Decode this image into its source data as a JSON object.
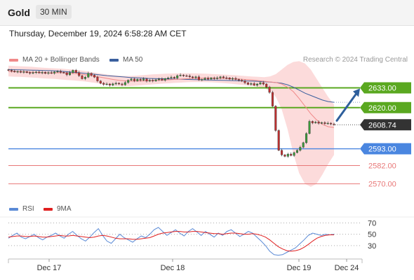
{
  "header": {
    "title": "Gold",
    "timeframe": "30 MIN"
  },
  "datetime": "Thursday, December 19, 2024 6:58:28 AM CET",
  "legend": {
    "bollinger": {
      "label": "MA 20 + Bollinger Bands",
      "color": "#f08a8a"
    },
    "ma50": {
      "label": "MA 50",
      "color": "#3a5f9e"
    }
  },
  "rsi_legend": {
    "rsi": {
      "label": "RSI",
      "color": "#5a8ad6"
    },
    "ma9": {
      "label": "9MA",
      "color": "#e02020"
    }
  },
  "credit": "Research © 2024 Trading Central",
  "colors": {
    "green_level": "#5aa820",
    "blue_level": "#4a86e0",
    "red_level": "#e87878",
    "price_tag": "#333333",
    "arrow": "#2e5f9c",
    "candle_up": "#3a9a3a",
    "candle_down": "#c03030",
    "band_fill": "#fbd5d5"
  },
  "chart_data": [
    {
      "type": "candlestick",
      "series": [
        {
          "name": "MA 20 + Bollinger Bands"
        },
        {
          "name": "MA 50"
        }
      ],
      "ylim": [
        2562,
        2647
      ],
      "levels": [
        {
          "value": 2633.0,
          "label": "2633.00",
          "kind": "resistance"
        },
        {
          "value": 2620.0,
          "label": "2620.00",
          "kind": "resistance"
        },
        {
          "value": 2608.74,
          "label": "2608.74",
          "kind": "last"
        },
        {
          "value": 2593.0,
          "label": "2593.00",
          "kind": "pivot"
        },
        {
          "value": 2582.0,
          "label": "2582.00",
          "kind": "support"
        },
        {
          "value": 2570.0,
          "label": "2570.00",
          "kind": "support"
        }
      ],
      "x_ticks": [
        "Dec 17",
        "Dec 18",
        "Dec 19",
        "Dec 24"
      ],
      "close": [
        2644.5,
        2644,
        2643.5,
        2643.8,
        2643.2,
        2643.6,
        2643,
        2642.5,
        2643,
        2643.4,
        2642.8,
        2643.2,
        2642.5,
        2643,
        2642.6,
        2643.4,
        2643.8,
        2643.2,
        2642.9,
        2641.5,
        2643,
        2644.5,
        2643,
        2641,
        2639,
        2640,
        2642.5,
        2641.3,
        2640,
        2637.5,
        2636,
        2635.2,
        2635.5,
        2634.7,
        2635.6,
        2636,
        2635.5,
        2635,
        2636.5,
        2638,
        2638.8,
        2637.6,
        2638.6,
        2638,
        2638.9,
        2637.4,
        2638,
        2637.5,
        2638.3,
        2638.8,
        2638,
        2639,
        2639.5,
        2640,
        2639.4,
        2641,
        2641.4,
        2641,
        2640.8,
        2640.2,
        2639.6,
        2640.2,
        2638.2,
        2638.5,
        2639.3,
        2638.7,
        2639.5,
        2639,
        2639.5,
        2640.2,
        2639.6,
        2639.5,
        2638.7,
        2639.2,
        2638.5,
        2638,
        2637.4,
        2636.3,
        2635.3,
        2635.8,
        2634.7,
        2635.5,
        2636.4,
        2635.5,
        2633.5,
        2630,
        2621,
        2605,
        2592,
        2589,
        2588,
        2589.5,
        2588.6,
        2590.5,
        2592,
        2594,
        2597,
        2603,
        2611,
        2610,
        2610.5,
        2609.7,
        2610.2,
        2609.5,
        2609.8,
        2609.3,
        2608.74
      ],
      "ma20": [
        2643.8,
        2643.6,
        2643.5,
        2643.4,
        2643.2,
        2643.0,
        2642.8,
        2642.7,
        2642.8,
        2642.9,
        2642.7,
        2642.5,
        2642.2,
        2641.7,
        2641.1,
        2640.5,
        2639.9,
        2639.2,
        2638.5,
        2637.9,
        2637.6,
        2637.4,
        2637.4,
        2637.5,
        2637.6,
        2637.8,
        2638.0,
        2638.2,
        2638.4,
        2638.6,
        2638.8,
        2639.0,
        2639.2,
        2639.3,
        2639.4,
        2639.4,
        2639.3,
        2639.2,
        2639.1,
        2638.9,
        2638.7,
        2638.4,
        2638.1,
        2637.7,
        2637.3,
        2636.9,
        2636.5,
        2635.5,
        2633.5,
        2630.5,
        2626.0,
        2621.0,
        2616.0,
        2612.0,
        2609.0,
        2607.5,
        2607.0
      ],
      "bb_upper": [
        2647.5,
        2647.3,
        2647.2,
        2647.0,
        2646.8,
        2646.5,
        2646.2,
        2646.0,
        2645.8,
        2645.6,
        2645.3,
        2645.0,
        2644.6,
        2644.1,
        2643.5,
        2642.9,
        2642.3,
        2641.7,
        2641.3,
        2641.0,
        2640.8,
        2640.8,
        2641.0,
        2641.3,
        2641.6,
        2641.9,
        2642.1,
        2642.3,
        2642.4,
        2642.5,
        2642.6,
        2642.6,
        2642.5,
        2642.4,
        2642.3,
        2642.1,
        2641.9,
        2641.7,
        2641.5,
        2641.3,
        2641.0,
        2640.7,
        2640.4,
        2640.2,
        2640.0,
        2640.5,
        2642.0,
        2645.0,
        2648.0,
        2650.0,
        2650.5,
        2649.0,
        2645.0,
        2639.0,
        2633.0,
        2627.0,
        2622.0
      ],
      "bb_lower": [
        2640.5,
        2640.3,
        2640.2,
        2640.0,
        2639.8,
        2639.5,
        2639.2,
        2639.0,
        2638.8,
        2638.5,
        2638.2,
        2637.9,
        2637.6,
        2637.2,
        2636.7,
        2636.2,
        2635.6,
        2635.0,
        2634.5,
        2634.2,
        2634.1,
        2634.2,
        2634.4,
        2634.7,
        2635.0,
        2635.3,
        2635.6,
        2635.9,
        2636.1,
        2636.3,
        2636.5,
        2636.7,
        2636.8,
        2636.8,
        2636.7,
        2636.6,
        2636.4,
        2636.1,
        2635.8,
        2635.4,
        2635.0,
        2634.6,
        2634.2,
        2633.6,
        2632.8,
        2631.0,
        2627.0,
        2619.0,
        2606.0,
        2590.0,
        2577.0,
        2570.0,
        2568.0,
        2570.0,
        2576.0,
        2583.0,
        2589.0
      ],
      "ma50": [
        2645.0,
        2644.9,
        2644.8,
        2644.7,
        2644.6,
        2644.5,
        2644.4,
        2644.3,
        2644.1,
        2643.9,
        2643.6,
        2643.3,
        2643.0,
        2642.6,
        2642.2,
        2641.8,
        2641.4,
        2641.0,
        2640.7,
        2640.4,
        2640.1,
        2639.8,
        2639.6,
        2639.4,
        2639.2,
        2639.1,
        2639.0,
        2638.9,
        2638.8,
        2638.7,
        2638.6,
        2638.5,
        2638.4,
        2638.3,
        2638.2,
        2638.1,
        2638.0,
        2637.9,
        2637.8,
        2637.7,
        2637.6,
        2637.5,
        2637.4,
        2637.2,
        2637.0,
        2636.8,
        2636.5,
        2636.0,
        2635.0,
        2633.5,
        2631.5,
        2629.5,
        2628.0,
        2626.5,
        2625.0,
        2624.0,
        2623.5
      ],
      "projection": {
        "from": 2611,
        "to": 2633.0
      }
    },
    {
      "type": "line",
      "series": [
        {
          "name": "RSI",
          "values": [
            43,
            48,
            52,
            45,
            42,
            46,
            50,
            44,
            40,
            45,
            48,
            52,
            47,
            43,
            50,
            55,
            48,
            42,
            38,
            45,
            53,
            60,
            48,
            38,
            34,
            42,
            50,
            44,
            40,
            36,
            42,
            47,
            44,
            50,
            58,
            62,
            55,
            48,
            53,
            58,
            52,
            47,
            55,
            60,
            54,
            48,
            55,
            50,
            45,
            52,
            48,
            55,
            58,
            52,
            46,
            50,
            55,
            52,
            45,
            38,
            30,
            20,
            14,
            13,
            14,
            18,
            22,
            26,
            33,
            40,
            48,
            52,
            50,
            48,
            50,
            49,
            50
          ]
        },
        {
          "name": "9MA",
          "values": [
            45,
            46,
            47,
            47,
            46,
            46,
            47,
            46,
            45,
            45,
            46,
            47,
            48,
            47,
            47,
            48,
            47,
            46,
            45,
            44,
            45,
            47,
            48,
            47,
            45,
            43,
            42,
            42,
            42,
            41,
            41,
            42,
            43,
            44,
            47,
            50,
            52,
            53,
            54,
            55,
            55,
            54,
            54,
            55,
            55,
            54,
            53,
            52,
            51,
            51,
            50,
            51,
            52,
            52,
            51,
            50,
            50,
            51,
            50,
            48,
            45,
            40,
            34,
            28,
            24,
            21,
            20,
            21,
            23,
            27,
            32,
            38,
            43,
            46,
            48,
            49,
            49
          ]
        }
      ],
      "levels": [
        70,
        50,
        30
      ],
      "ylim": [
        10,
        78
      ]
    }
  ]
}
